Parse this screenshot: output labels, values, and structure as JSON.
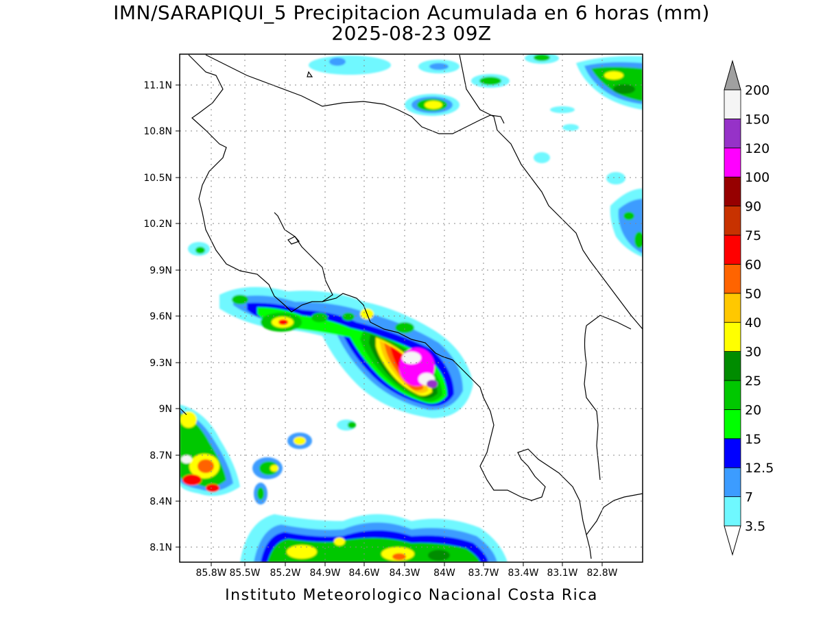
{
  "title_line1": "IMN/SARAPIQUI_5 Precipitacion Acumulada en 6 horas (mm)",
  "title_line2": "2025-08-23 09Z",
  "footer": "Instituto Meteorologico Nacional Costa Rica",
  "map": {
    "lon_range": [
      -86.0,
      -83.0
    ],
    "lat_range": [
      8.0,
      11.3
    ],
    "x_ticks": [
      "85.8W",
      "85.5W",
      "85.2W",
      "84.9W",
      "84.6W",
      "84.3W",
      "84W",
      "83.7W",
      "83.4W",
      "83.1W",
      "82.8W"
    ],
    "y_ticks": [
      "11.1N",
      "10.8N",
      "10.5N",
      "10.2N",
      "9.9N",
      "9.6N",
      "9.3N",
      "9N",
      "8.7N",
      "8.4N",
      "8.1N"
    ],
    "grid": "dotted"
  },
  "colorbar": {
    "levels": [
      "3.5",
      "7",
      "12.5",
      "15",
      "20",
      "25",
      "30",
      "40",
      "50",
      "60",
      "75",
      "90",
      "100",
      "120",
      "150",
      "200"
    ],
    "colors": [
      "#6ff8ff",
      "#3c9cff",
      "#0000ff",
      "#00ff00",
      "#00c800",
      "#008c00",
      "#ffff00",
      "#ffc800",
      "#ff6400",
      "#ff0000",
      "#c83200",
      "#960000",
      "#ff00ff",
      "#9632c8",
      "#f5f5f5",
      "#a0a0a0"
    ]
  }
}
